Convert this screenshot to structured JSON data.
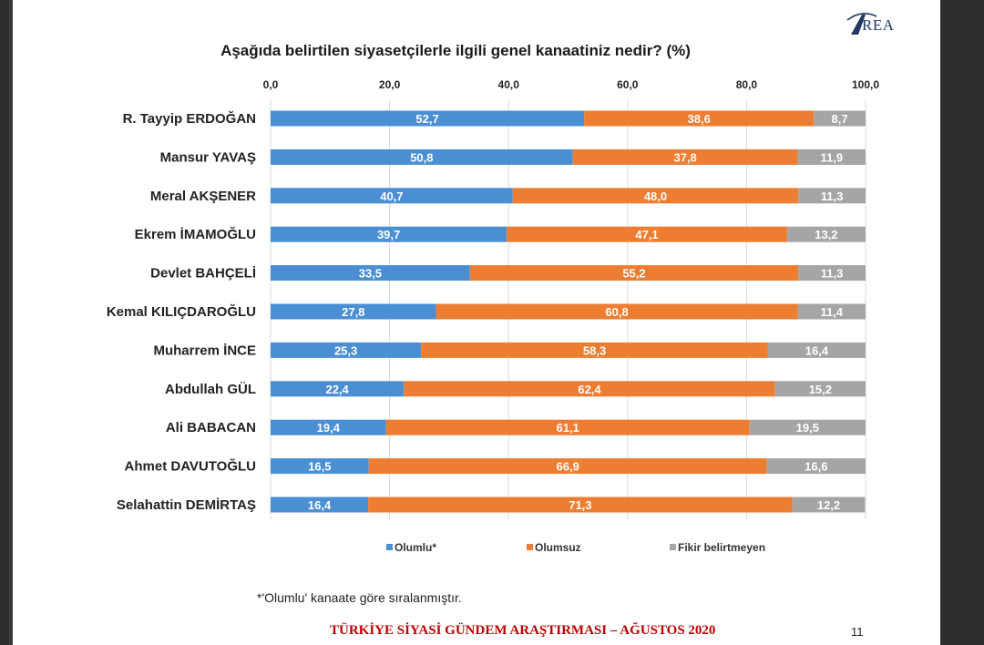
{
  "logo": {
    "mark": "A",
    "text": "REA"
  },
  "footnote": "*'Olumlu' kanaate göre sıralanmıştır.",
  "footer": {
    "title": "TÜRKİYE SİYASİ GÜNDEM ARAŞTIRMASI – AĞUSTOS 2020",
    "page": "11"
  },
  "colors": {
    "olumlu": "#4a8fd4",
    "olumsuz": "#ed7d31",
    "fikir": "#a5a5a5"
  },
  "chart_data": {
    "type": "bar",
    "orientation": "horizontal",
    "stacked": true,
    "title": "Aşağıda belirtilen siyasetçilerle ilgili genel kanaatiniz nedir? (%)",
    "xlim": [
      0,
      100
    ],
    "x_ticks": [
      "0,0",
      "20,0",
      "40,0",
      "60,0",
      "80,0",
      "100,0"
    ],
    "x_tick_values": [
      0,
      20,
      40,
      60,
      80,
      100
    ],
    "grid": true,
    "legend_position": "bottom",
    "categories": [
      "R. Tayyip ERDOĞAN",
      "Mansur YAVAŞ",
      "Meral AKŞENER",
      "Ekrem İMAMOĞLU",
      "Devlet BAHÇELİ",
      "Kemal KILIÇDAROĞLU",
      "Muharrem İNCE",
      "Abdullah GÜL",
      "Ali BABACAN",
      "Ahmet DAVUTOĞLU",
      "Selahattin DEMİRTAŞ"
    ],
    "series": [
      {
        "name": "Olumlu*",
        "color": "#4a8fd4",
        "values": [
          52.7,
          50.8,
          40.7,
          39.7,
          33.5,
          27.8,
          25.3,
          22.4,
          19.4,
          16.5,
          16.4
        ],
        "labels": [
          "52,7",
          "50,8",
          "40,7",
          "39,7",
          "33,5",
          "27,8",
          "25,3",
          "22,4",
          "19,4",
          "16,5",
          "16,4"
        ]
      },
      {
        "name": "Olumsuz",
        "color": "#ed7d31",
        "values": [
          38.6,
          37.8,
          48.0,
          47.1,
          55.2,
          60.8,
          58.3,
          62.4,
          61.1,
          66.9,
          71.3
        ],
        "labels": [
          "38,6",
          "37,8",
          "48,0",
          "47,1",
          "55,2",
          "60,8",
          "58,3",
          "62,4",
          "61,1",
          "66,9",
          "71,3"
        ]
      },
      {
        "name": "Fikir belirtmeyen",
        "color": "#a5a5a5",
        "values": [
          8.7,
          11.9,
          11.3,
          13.2,
          11.3,
          11.4,
          16.4,
          15.2,
          19.5,
          16.6,
          12.2
        ],
        "labels": [
          "8,7",
          "11,9",
          "11,3",
          "13,2",
          "11,3",
          "11,4",
          "16,4",
          "15,2",
          "19,5",
          "16,6",
          "12,2"
        ]
      }
    ]
  }
}
